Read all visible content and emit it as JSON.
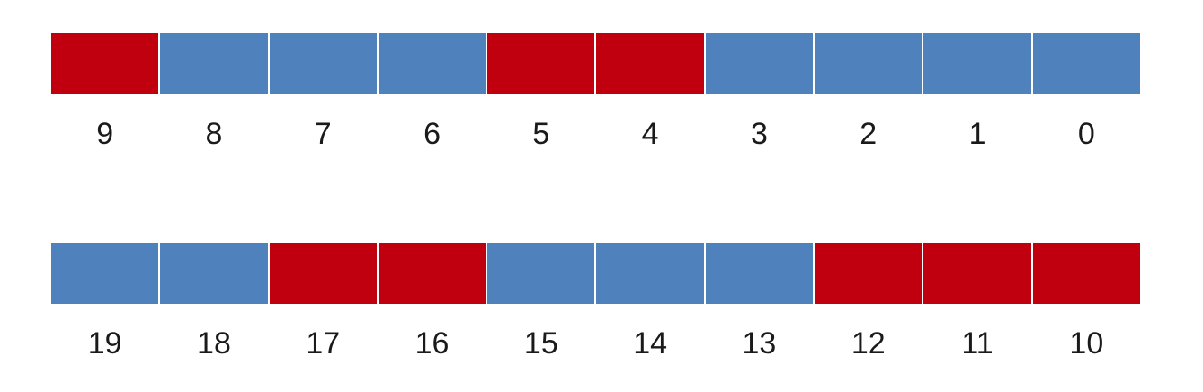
{
  "colors": {
    "set": "#c0000e",
    "clear": "#4f81bd"
  },
  "rows": [
    {
      "bits": [
        {
          "label": "9",
          "state": "set"
        },
        {
          "label": "8",
          "state": "clear"
        },
        {
          "label": "7",
          "state": "clear"
        },
        {
          "label": "6",
          "state": "clear"
        },
        {
          "label": "5",
          "state": "set"
        },
        {
          "label": "4",
          "state": "set"
        },
        {
          "label": "3",
          "state": "clear"
        },
        {
          "label": "2",
          "state": "clear"
        },
        {
          "label": "1",
          "state": "clear"
        },
        {
          "label": "0",
          "state": "clear"
        }
      ]
    },
    {
      "bits": [
        {
          "label": "19",
          "state": "clear"
        },
        {
          "label": "18",
          "state": "clear"
        },
        {
          "label": "17",
          "state": "set"
        },
        {
          "label": "16",
          "state": "set"
        },
        {
          "label": "15",
          "state": "clear"
        },
        {
          "label": "14",
          "state": "clear"
        },
        {
          "label": "13",
          "state": "clear"
        },
        {
          "label": "12",
          "state": "set"
        },
        {
          "label": "11",
          "state": "set"
        },
        {
          "label": "10",
          "state": "set"
        }
      ]
    }
  ]
}
